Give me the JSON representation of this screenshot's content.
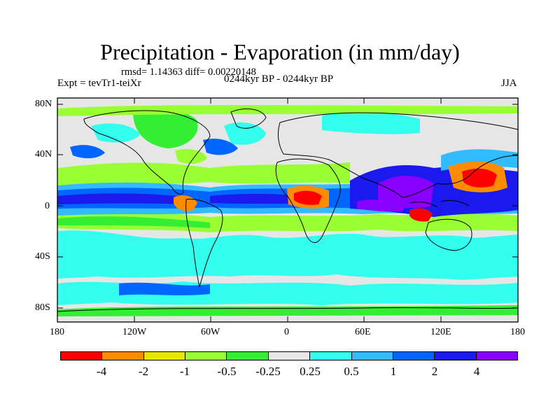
{
  "title": "Precipitation - Evaporation (in mm/day)",
  "stats": "rmsd= 1.14363 diff= 0.00220148",
  "experiment": "Expt = tevTr1-teiXr",
  "period": "0244kyr BP - 0244kyr BP",
  "season": "JJA",
  "map": {
    "lat_labels": [
      "80N",
      "40N",
      "0",
      "40S",
      "80S"
    ],
    "lon_labels": [
      "180",
      "120W",
      "60W",
      "0",
      "60E",
      "120E",
      "180"
    ],
    "background_color": "#e6e6e6"
  },
  "colorbar": {
    "colors": [
      "#ff0000",
      "#ff8c00",
      "#e6e600",
      "#99ff33",
      "#33ee33",
      "#e6e6e6",
      "#33ffee",
      "#33bbff",
      "#0066ff",
      "#1a1aee",
      "#8800ff"
    ],
    "labels": [
      "-4",
      "-2",
      "-1",
      "-0.5",
      "-0.25",
      "0.25",
      "0.5",
      "1",
      "2",
      "4"
    ]
  }
}
